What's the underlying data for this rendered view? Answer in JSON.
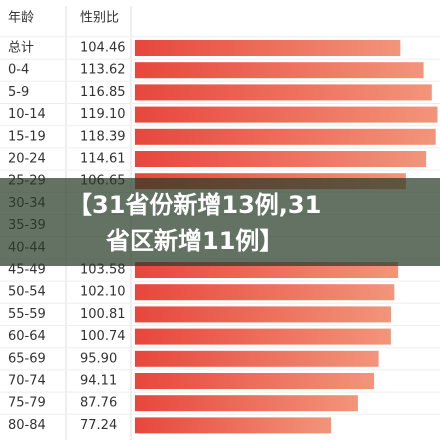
{
  "chart_data": {
    "type": "bar",
    "orientation": "horizontal",
    "category_header": "年龄",
    "value_header": "性别比",
    "categories": [
      "总计",
      "0-4",
      "5-9",
      "10-14",
      "15-19",
      "20-24",
      "25-29",
      "30-34",
      "35-39",
      "40-44",
      "45-49",
      "50-54",
      "55-59",
      "60-64",
      "65-69",
      "70-74",
      "75-79",
      "80-84"
    ],
    "values": [
      104.46,
      113.62,
      116.85,
      119.1,
      118.39,
      114.61,
      106.65,
      null,
      null,
      null,
      103.58,
      102.1,
      100.81,
      100.74,
      95.9,
      94.11,
      87.76,
      77.24
    ],
    "value_labels": [
      "104.46",
      "113.62",
      "116.85",
      "119.10",
      "118.39",
      "114.61",
      "106.65",
      null,
      null,
      null,
      "103.58",
      "102.10",
      "100.81",
      "100.74",
      "95.90",
      "94.11",
      "87.76",
      "77.24"
    ],
    "color": "#e8463c",
    "annotation_lines": [
      "【31省份新增13例,31",
      "省区新增11例】"
    ]
  }
}
